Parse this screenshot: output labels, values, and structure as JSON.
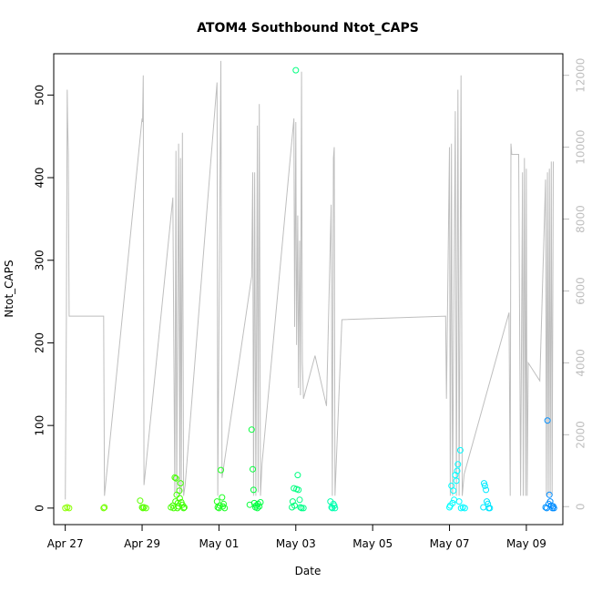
{
  "chart_data": {
    "type": "scatter",
    "title": "ATOM4 Southbound Ntot_CAPS",
    "xlabel": "Date",
    "ylabel": "Ntot_CAPS",
    "x_range_days": [
      -0.3,
      12.95
    ],
    "x_ticks": [
      {
        "day": 0,
        "label": "Apr 27"
      },
      {
        "day": 2,
        "label": "Apr 29"
      },
      {
        "day": 4,
        "label": "May 01"
      },
      {
        "day": 6,
        "label": "May 03"
      },
      {
        "day": 8,
        "label": "May 05"
      },
      {
        "day": 10,
        "label": "May 07"
      },
      {
        "day": 12,
        "label": "May 09"
      }
    ],
    "ylim": [
      -20,
      550
    ],
    "y_ticks": [
      0,
      100,
      200,
      300,
      400,
      500
    ],
    "y2lim": [
      -500,
      12600
    ],
    "y2_ticks": [
      0,
      2000,
      4000,
      6000,
      8000,
      10000,
      12000
    ],
    "right_axis_color": "#bebebe",
    "line_color": "#bebebe",
    "secondary_line": [
      [
        0.0,
        200
      ],
      [
        0.03,
        5300
      ],
      [
        0.05,
        11600
      ],
      [
        0.06,
        10800
      ],
      [
        0.08,
        9800
      ],
      [
        0.1,
        5300
      ],
      [
        1.0,
        5300
      ],
      [
        1.02,
        300
      ],
      [
        2.0,
        10800
      ],
      [
        2.01,
        10700
      ],
      [
        2.03,
        12000
      ],
      [
        2.05,
        600
      ],
      [
        2.8,
        8600
      ],
      [
        2.85,
        400
      ],
      [
        2.88,
        9900
      ],
      [
        2.9,
        300
      ],
      [
        2.95,
        10100
      ],
      [
        2.98,
        300
      ],
      [
        3.0,
        9700
      ],
      [
        3.02,
        400
      ],
      [
        3.05,
        10400
      ],
      [
        3.08,
        300
      ],
      [
        3.12,
        600
      ],
      [
        3.95,
        11800
      ],
      [
        3.97,
        300
      ],
      [
        4.05,
        12400
      ],
      [
        4.08,
        800
      ],
      [
        4.85,
        6400
      ],
      [
        4.88,
        9300
      ],
      [
        4.9,
        300
      ],
      [
        4.93,
        9300
      ],
      [
        4.96,
        300
      ],
      [
        5.0,
        10600
      ],
      [
        5.02,
        400
      ],
      [
        5.05,
        11200
      ],
      [
        5.08,
        300
      ],
      [
        5.12,
        1200
      ],
      [
        5.95,
        10800
      ],
      [
        5.97,
        5000
      ],
      [
        6.0,
        10700
      ],
      [
        6.02,
        4500
      ],
      [
        6.05,
        8100
      ],
      [
        6.07,
        3300
      ],
      [
        6.1,
        7400
      ],
      [
        6.12,
        3100
      ],
      [
        6.15,
        12100
      ],
      [
        6.17,
        4000
      ],
      [
        6.2,
        3000
      ],
      [
        6.5,
        4200
      ],
      [
        6.8,
        2800
      ],
      [
        6.92,
        8400
      ],
      [
        6.95,
        300
      ],
      [
        6.98,
        9700
      ],
      [
        7.0,
        10000
      ],
      [
        7.02,
        300
      ],
      [
        7.2,
        5200
      ],
      [
        9.9,
        5300
      ],
      [
        9.92,
        3000
      ],
      [
        10.0,
        10000
      ],
      [
        10.02,
        300
      ],
      [
        10.05,
        10100
      ],
      [
        10.08,
        300
      ],
      [
        10.15,
        11000
      ],
      [
        10.18,
        300
      ],
      [
        10.22,
        11600
      ],
      [
        10.25,
        300
      ],
      [
        10.3,
        12000
      ],
      [
        10.33,
        300
      ],
      [
        10.38,
        900
      ],
      [
        11.55,
        5400
      ],
      [
        11.58,
        300
      ],
      [
        11.6,
        10100
      ],
      [
        11.62,
        9800
      ],
      [
        11.8,
        9800
      ],
      [
        11.85,
        300
      ],
      [
        11.9,
        9300
      ],
      [
        11.92,
        300
      ],
      [
        11.95,
        9700
      ],
      [
        11.98,
        300
      ],
      [
        12.0,
        9400
      ],
      [
        12.02,
        300
      ],
      [
        12.05,
        4000
      ],
      [
        12.35,
        3500
      ],
      [
        12.5,
        9100
      ],
      [
        12.52,
        300
      ],
      [
        12.55,
        9300
      ],
      [
        12.57,
        300
      ],
      [
        12.6,
        9400
      ],
      [
        12.62,
        300
      ],
      [
        12.65,
        9600
      ],
      [
        12.67,
        300
      ],
      [
        12.7,
        9600
      ]
    ],
    "points": [
      {
        "x": 0.0,
        "y": 0
      },
      {
        "x": 0.05,
        "y": 1
      },
      {
        "x": 0.1,
        "y": 0
      },
      {
        "x": 1.0,
        "y": 0
      },
      {
        "x": 1.02,
        "y": 1
      },
      {
        "x": 1.95,
        "y": 9
      },
      {
        "x": 2.0,
        "y": 1
      },
      {
        "x": 2.02,
        "y": 0
      },
      {
        "x": 2.05,
        "y": 1
      },
      {
        "x": 2.1,
        "y": 0
      },
      {
        "x": 2.75,
        "y": 1
      },
      {
        "x": 2.8,
        "y": 3
      },
      {
        "x": 2.82,
        "y": 0
      },
      {
        "x": 2.85,
        "y": 37
      },
      {
        "x": 2.87,
        "y": 8
      },
      {
        "x": 2.9,
        "y": 16
      },
      {
        "x": 2.92,
        "y": 0
      },
      {
        "x": 2.95,
        "y": 2
      },
      {
        "x": 2.97,
        "y": 21
      },
      {
        "x": 3.0,
        "y": 30
      },
      {
        "x": 3.02,
        "y": 7
      },
      {
        "x": 3.05,
        "y": 4
      },
      {
        "x": 3.08,
        "y": 0
      },
      {
        "x": 2.88,
        "y": 36
      },
      {
        "x": 2.93,
        "y": 6
      },
      {
        "x": 2.98,
        "y": 12
      },
      {
        "x": 3.1,
        "y": 1
      },
      {
        "x": 3.95,
        "y": 8
      },
      {
        "x": 3.97,
        "y": 1
      },
      {
        "x": 4.0,
        "y": 0
      },
      {
        "x": 4.02,
        "y": 3
      },
      {
        "x": 4.05,
        "y": 46
      },
      {
        "x": 4.08,
        "y": 13
      },
      {
        "x": 4.1,
        "y": 2
      },
      {
        "x": 4.12,
        "y": 5
      },
      {
        "x": 4.15,
        "y": 0
      },
      {
        "x": 4.85,
        "y": 95
      },
      {
        "x": 4.88,
        "y": 47
      },
      {
        "x": 4.9,
        "y": 22
      },
      {
        "x": 4.92,
        "y": 6
      },
      {
        "x": 4.95,
        "y": 1
      },
      {
        "x": 4.97,
        "y": 3
      },
      {
        "x": 5.0,
        "y": 0
      },
      {
        "x": 5.02,
        "y": 5
      },
      {
        "x": 5.05,
        "y": 2
      },
      {
        "x": 5.08,
        "y": 7
      },
      {
        "x": 4.8,
        "y": 4
      },
      {
        "x": 6.0,
        "y": 530
      },
      {
        "x": 5.95,
        "y": 24
      },
      {
        "x": 6.02,
        "y": 23
      },
      {
        "x": 6.05,
        "y": 40
      },
      {
        "x": 6.07,
        "y": 22
      },
      {
        "x": 6.1,
        "y": 10
      },
      {
        "x": 5.92,
        "y": 8
      },
      {
        "x": 5.97,
        "y": 3
      },
      {
        "x": 6.12,
        "y": 1
      },
      {
        "x": 6.15,
        "y": 0
      },
      {
        "x": 6.2,
        "y": 0
      },
      {
        "x": 5.9,
        "y": 1
      },
      {
        "x": 6.9,
        "y": 8
      },
      {
        "x": 6.93,
        "y": 1
      },
      {
        "x": 6.95,
        "y": 0
      },
      {
        "x": 6.98,
        "y": 5
      },
      {
        "x": 7.0,
        "y": 3
      },
      {
        "x": 7.02,
        "y": 0
      },
      {
        "x": 10.05,
        "y": 27
      },
      {
        "x": 10.1,
        "y": 21
      },
      {
        "x": 10.12,
        "y": 10
      },
      {
        "x": 10.0,
        "y": 1
      },
      {
        "x": 10.15,
        "y": 40
      },
      {
        "x": 10.2,
        "y": 45
      },
      {
        "x": 10.22,
        "y": 53
      },
      {
        "x": 10.28,
        "y": 70
      },
      {
        "x": 10.18,
        "y": 33
      },
      {
        "x": 10.25,
        "y": 8
      },
      {
        "x": 10.3,
        "y": 0
      },
      {
        "x": 10.35,
        "y": 1
      },
      {
        "x": 10.08,
        "y": 6
      },
      {
        "x": 10.4,
        "y": 0
      },
      {
        "x": 10.02,
        "y": 3
      },
      {
        "x": 10.9,
        "y": 30
      },
      {
        "x": 10.92,
        "y": 27
      },
      {
        "x": 10.95,
        "y": 22
      },
      {
        "x": 10.97,
        "y": 8
      },
      {
        "x": 11.0,
        "y": 5
      },
      {
        "x": 11.02,
        "y": 0
      },
      {
        "x": 10.88,
        "y": 1
      },
      {
        "x": 11.05,
        "y": 0
      },
      {
        "x": 12.55,
        "y": 106
      },
      {
        "x": 12.6,
        "y": 16
      },
      {
        "x": 12.62,
        "y": 8
      },
      {
        "x": 12.58,
        "y": 5
      },
      {
        "x": 12.5,
        "y": 1
      },
      {
        "x": 12.53,
        "y": 0
      },
      {
        "x": 12.65,
        "y": 3
      },
      {
        "x": 12.68,
        "y": 0
      },
      {
        "x": 12.7,
        "y": 2
      },
      {
        "x": 12.72,
        "y": 0
      }
    ],
    "point_color_gradient": [
      {
        "day": 0,
        "color": "#8cff00"
      },
      {
        "day": 3,
        "color": "#40ff00"
      },
      {
        "day": 5,
        "color": "#00ff40"
      },
      {
        "day": 6,
        "color": "#00ff80"
      },
      {
        "day": 7,
        "color": "#00ffb0"
      },
      {
        "day": 10,
        "color": "#00ffff"
      },
      {
        "day": 11,
        "color": "#00e8ff"
      },
      {
        "day": 12.6,
        "color": "#008cff"
      }
    ]
  }
}
